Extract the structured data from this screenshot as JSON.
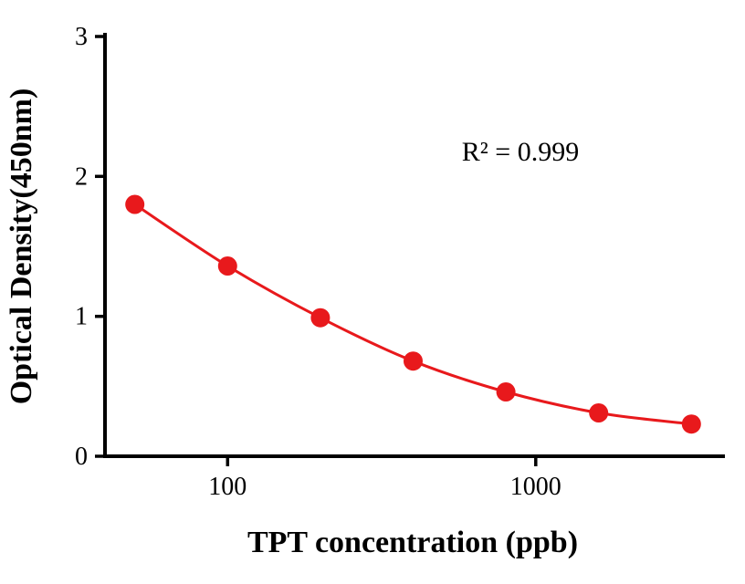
{
  "chart_data": {
    "type": "line",
    "title": "",
    "xlabel": "TPT concentration (ppb)",
    "ylabel": "Optical Density(450nm)",
    "x": [
      50,
      100,
      200,
      400,
      800,
      1600,
      3200
    ],
    "y": [
      1.8,
      1.36,
      0.99,
      0.68,
      0.46,
      0.31,
      0.23
    ],
    "x_scale": "log",
    "xlim": [
      40,
      4000
    ],
    "ylim": [
      0,
      3
    ],
    "x_ticks": [
      100,
      1000
    ],
    "y_ticks": [
      0,
      1,
      2,
      3
    ],
    "annotation": "R² = 0.999",
    "marker_color": "#e8191c",
    "line_color": "#e8191c",
    "axis_color": "#000000",
    "grid": false,
    "legend": false
  }
}
